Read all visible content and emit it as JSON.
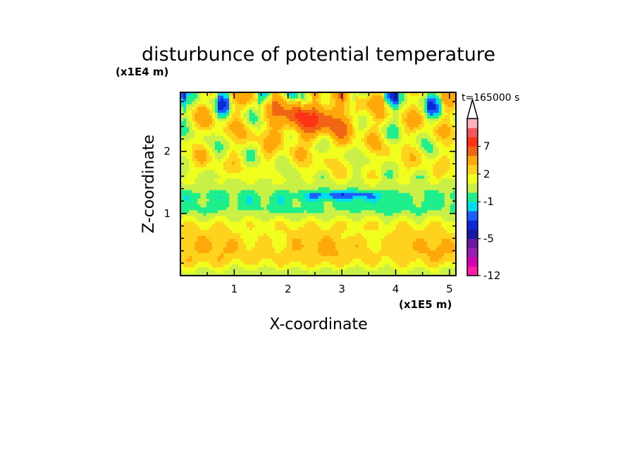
{
  "chart_data": {
    "type": "heatmap",
    "title": "disturbunce of potential temperature",
    "xlabel": "X-coordinate",
    "ylabel": "Z-coordinate",
    "x_unit": "(x1E5 m)",
    "y_unit": "(x1E4 m)",
    "time_label": "t=165000 s",
    "xlim": [
      0,
      5.12
    ],
    "ylim": [
      0,
      2.95
    ],
    "x_ticks": [
      "1",
      "2",
      "3",
      "4",
      "5"
    ],
    "y_ticks": [
      "1",
      "2"
    ],
    "colorbar": {
      "labels": [
        "7",
        "2",
        "-1",
        "-5",
        "-12"
      ],
      "levels": [
        -12,
        -10,
        -8,
        -6,
        -5,
        -4,
        -3,
        -2,
        -1,
        0,
        1,
        2,
        3,
        5,
        7,
        9,
        11
      ],
      "colors": [
        "#ff1aa8",
        "#d400b4",
        "#9a1fae",
        "#6a1aa0",
        "#1818a0",
        "#0a28d8",
        "#1e5eff",
        "#00dcf0",
        "#1eef8c",
        "#c8f046",
        "#f0ff1e",
        "#ffd21e",
        "#ffa80a",
        "#f06414",
        "#ff3214",
        "#f05a5a",
        "#ffb4c0"
      ],
      "extend": "max"
    },
    "features": [
      {
        "desc": "cool cyan layer",
        "z_range": [
          0.85,
          1.45
        ],
        "value": -1
      },
      {
        "desc": "strong negative band",
        "z_range": [
          1.25,
          1.35
        ],
        "value": -4
      },
      {
        "desc": "warm core aloft",
        "x_center": 2.4,
        "z_center": 2.55,
        "value": 6
      },
      {
        "desc": "warm lower layer",
        "z_range": [
          0.1,
          0.8
        ],
        "value": 2
      }
    ]
  }
}
